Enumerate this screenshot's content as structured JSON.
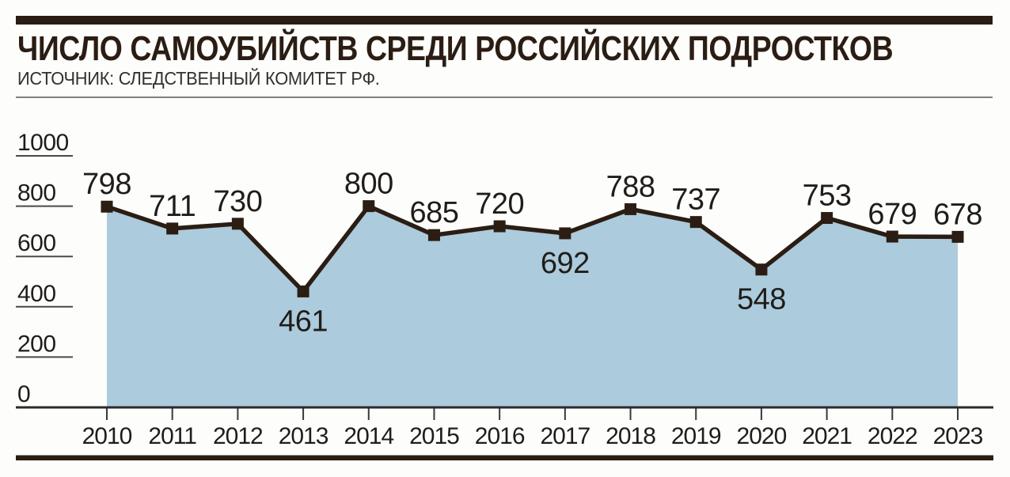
{
  "header": {
    "title": "ЧИСЛО САМОУБИЙСТВ СРЕДИ РОССИЙСКИХ ПОДРОСТКОВ",
    "source": "ИСТОЧНИК: СЛЕДСТВЕННЫЙ КОМИТЕТ РФ."
  },
  "colors": {
    "accent_dark": "#2b1d13",
    "line": "#2b1d13",
    "marker": "#2b1d13",
    "area_fill": "#accbdc",
    "label_text": "#201d19",
    "grid_line": "#4a4a4a",
    "axis_line": "#2b2b2b",
    "thin_rule": "#7f7f7f",
    "background": "#fdfdfc"
  },
  "chart_data": {
    "type": "area",
    "title": "ЧИСЛО САМОУБИЙСТВ СРЕДИ РОССИЙСКИХ ПОДРОСТКОВ",
    "source": "ИСТОЧНИК: СЛЕДСТВЕННЫЙ КОМИТЕТ РФ.",
    "categories": [
      "2010",
      "2011",
      "2012",
      "2013",
      "2014",
      "2015",
      "2016",
      "2017",
      "2018",
      "2019",
      "2020",
      "2021",
      "2022",
      "2023"
    ],
    "values": [
      798,
      711,
      730,
      461,
      800,
      685,
      720,
      692,
      788,
      737,
      548,
      753,
      679,
      678
    ],
    "label_positions": [
      "above",
      "above",
      "above",
      "below",
      "above",
      "above",
      "above",
      "below",
      "above",
      "above",
      "below",
      "above",
      "above",
      "above"
    ],
    "xlabel": "",
    "ylabel": "",
    "ylim": [
      0,
      1000
    ],
    "yticks": [
      0,
      200,
      400,
      600,
      800,
      1000
    ],
    "grid": "short y tick rules at left only",
    "legend": "none",
    "marker": "square"
  }
}
